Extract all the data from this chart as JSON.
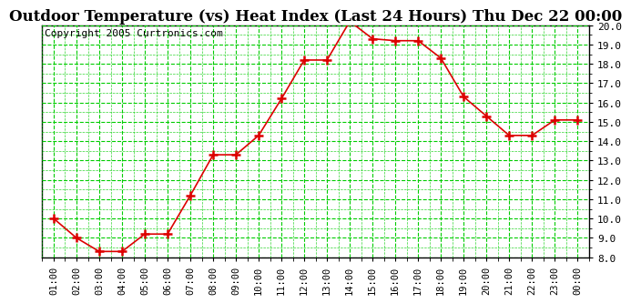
{
  "title": "Outdoor Temperature (vs) Heat Index (Last 24 Hours) Thu Dec 22 00:00",
  "copyright": "Copyright 2005 Curtronics.com",
  "x_labels": [
    "01:00",
    "02:00",
    "03:00",
    "04:00",
    "05:00",
    "06:00",
    "07:00",
    "08:00",
    "09:00",
    "10:00",
    "11:00",
    "12:00",
    "13:00",
    "14:00",
    "15:00",
    "16:00",
    "17:00",
    "18:00",
    "19:00",
    "20:00",
    "21:00",
    "22:00",
    "23:00",
    "00:00"
  ],
  "y_values": [
    10.0,
    9.0,
    8.3,
    8.3,
    9.2,
    9.2,
    11.2,
    13.3,
    13.3,
    14.3,
    16.2,
    18.2,
    18.2,
    20.2,
    19.3,
    19.2,
    19.2,
    18.3,
    16.3,
    15.3,
    14.3,
    14.3,
    15.1,
    15.1
  ],
  "ylim": [
    8.0,
    20.0
  ],
  "yticks": [
    8.0,
    9.0,
    10.0,
    11.0,
    12.0,
    13.0,
    14.0,
    15.0,
    16.0,
    17.0,
    18.0,
    19.0,
    20.0
  ],
  "line_color": "#dd0000",
  "marker_color": "#dd0000",
  "bg_color": "#ffffff",
  "plot_bg_color": "#ffffff",
  "grid_color": "#00cc00",
  "title_fontsize": 12,
  "copyright_fontsize": 8,
  "border_color": "#000000"
}
